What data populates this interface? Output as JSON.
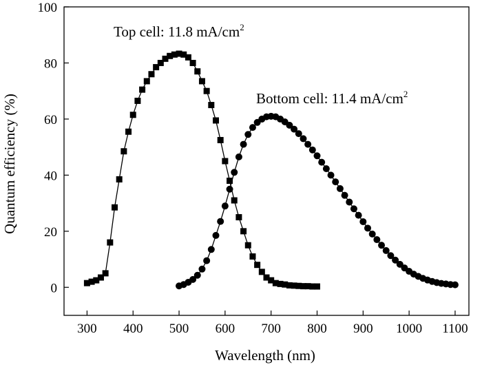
{
  "chart_data": {
    "type": "line",
    "title": "",
    "xlabel": "Wavelength (nm)",
    "ylabel": "Quantum efficiency (%)",
    "xlim": [
      250,
      1130
    ],
    "ylim": [
      -10,
      100
    ],
    "xticks": [
      300,
      400,
      500,
      600,
      700,
      800,
      900,
      1000,
      1100
    ],
    "yticks": [
      0,
      20,
      40,
      60,
      80,
      100
    ],
    "grid": false,
    "legend": "none",
    "annotations": [
      {
        "text": "Top cell: 11.8 mA/cm",
        "superscript": "2"
      },
      {
        "text": "Bottom cell: 11.4 mA/cm",
        "superscript": "2"
      }
    ],
    "series": [
      {
        "marker": "square",
        "x": [
          300,
          310,
          320,
          330,
          340,
          350,
          360,
          370,
          380,
          390,
          400,
          410,
          420,
          430,
          440,
          450,
          460,
          470,
          480,
          490,
          500,
          510,
          520,
          530,
          540,
          550,
          560,
          570,
          580,
          590,
          600,
          610,
          620,
          630,
          640,
          650,
          660,
          670,
          680,
          690,
          700,
          710,
          720,
          730,
          740,
          750,
          760,
          770,
          780,
          790,
          800
        ],
        "y": [
          1.5,
          2,
          2.5,
          3.5,
          5,
          16,
          28.5,
          38.5,
          48.5,
          55.5,
          61.5,
          66.5,
          70.5,
          73.5,
          76,
          78.5,
          80,
          81.5,
          82.5,
          83,
          83.3,
          83,
          82,
          80,
          77,
          73.5,
          70,
          65,
          59.5,
          52.5,
          45,
          38,
          31,
          25,
          20,
          15,
          11,
          8,
          5.5,
          3.5,
          2.5,
          1.5,
          1.2,
          1,
          0.7,
          0.6,
          0.5,
          0.4,
          0.4,
          0.3,
          0.3
        ]
      },
      {
        "marker": "circle",
        "x": [
          500,
          510,
          520,
          530,
          540,
          550,
          560,
          570,
          580,
          590,
          600,
          610,
          620,
          630,
          640,
          650,
          660,
          670,
          680,
          690,
          700,
          710,
          720,
          730,
          740,
          750,
          760,
          770,
          780,
          790,
          800,
          810,
          820,
          830,
          840,
          850,
          860,
          870,
          880,
          890,
          900,
          910,
          920,
          930,
          940,
          950,
          960,
          970,
          980,
          990,
          1000,
          1010,
          1020,
          1030,
          1040,
          1050,
          1060,
          1070,
          1080,
          1090,
          1100
        ],
        "y": [
          0.5,
          1,
          1.8,
          2.8,
          4.3,
          6.5,
          9.5,
          13.5,
          18.5,
          23.5,
          29,
          35,
          41,
          46.5,
          51,
          54.5,
          57,
          58.8,
          60,
          60.8,
          61,
          60.8,
          60,
          59,
          57.8,
          56.4,
          54.8,
          53,
          51,
          49,
          46.9,
          44.6,
          42.3,
          40,
          37.6,
          35.2,
          32.8,
          30.4,
          28,
          25.7,
          23.4,
          21.1,
          19,
          17,
          15,
          13.1,
          11.3,
          9.7,
          8.2,
          6.9,
          5.7,
          4.7,
          3.9,
          3.2,
          2.6,
          2.1,
          1.7,
          1.4,
          1.2,
          1,
          0.9
        ]
      }
    ]
  }
}
